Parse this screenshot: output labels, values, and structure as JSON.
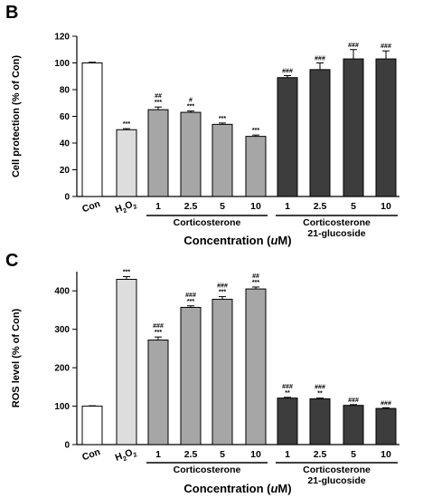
{
  "chart_data": [
    {
      "type": "bar",
      "panel": "B",
      "ylabel": "Cell protection (% of Con)",
      "xlabel": "Concentration (uM)",
      "ylim": [
        0,
        120
      ],
      "yticks": [
        0,
        20,
        40,
        60,
        80,
        100,
        120
      ],
      "categories": [
        "Con",
        "H2O2",
        "1",
        "2.5",
        "5",
        "10",
        "1",
        "2.5",
        "5",
        "10"
      ],
      "values": [
        100,
        50,
        65,
        63,
        54,
        45,
        89,
        95,
        103,
        103
      ],
      "errors": [
        0.5,
        0.8,
        2,
        1,
        1,
        1,
        1.5,
        5,
        7,
        6
      ],
      "annotations": [
        [],
        [
          "***"
        ],
        [
          "##",
          "***"
        ],
        [
          "#",
          "***"
        ],
        [
          "***"
        ],
        [
          "***"
        ],
        [
          "###"
        ],
        [
          "###"
        ],
        [
          "###"
        ],
        [
          "###"
        ]
      ],
      "colors": [
        "#ffffff",
        "#dddddd",
        "#a6a6a6",
        "#a6a6a6",
        "#a6a6a6",
        "#a6a6a6",
        "#3d3d3d",
        "#3d3d3d",
        "#3d3d3d",
        "#3d3d3d"
      ],
      "groups": [
        {
          "label_lines": [
            "Corticosterone"
          ],
          "from": 2,
          "to": 5
        },
        {
          "label_lines": [
            "Corticosterone",
            "21-glucoside"
          ],
          "from": 6,
          "to": 9
        }
      ]
    },
    {
      "type": "bar",
      "panel": "C",
      "ylabel": "ROS level (% of Con)",
      "xlabel": "Concentration (uM)",
      "ylim": [
        0,
        450
      ],
      "yticks": [
        0,
        100,
        200,
        300,
        400
      ],
      "categories": [
        "Con",
        "H2O2",
        "1",
        "2.5",
        "5",
        "10",
        "1",
        "2.5",
        "5",
        "10"
      ],
      "values": [
        100,
        430,
        272,
        357,
        378,
        405,
        121,
        119,
        102,
        94
      ],
      "errors": [
        1,
        7,
        8,
        4,
        7,
        5,
        2,
        2,
        2,
        2
      ],
      "annotations": [
        [],
        [
          "***"
        ],
        [
          "###",
          "***"
        ],
        [
          "###",
          "***"
        ],
        [
          "###",
          "***"
        ],
        [
          "##",
          "***"
        ],
        [
          "###",
          "**"
        ],
        [
          "###",
          "**"
        ],
        [
          "###"
        ],
        [
          "###"
        ]
      ],
      "colors": [
        "#ffffff",
        "#dddddd",
        "#a6a6a6",
        "#a6a6a6",
        "#a6a6a6",
        "#a6a6a6",
        "#3d3d3d",
        "#3d3d3d",
        "#3d3d3d",
        "#3d3d3d"
      ],
      "groups": [
        {
          "label_lines": [
            "Corticosterone"
          ],
          "from": 2,
          "to": 5
        },
        {
          "label_lines": [
            "Corticosterone",
            "21-glucoside"
          ],
          "from": 6,
          "to": 9
        }
      ]
    }
  ]
}
